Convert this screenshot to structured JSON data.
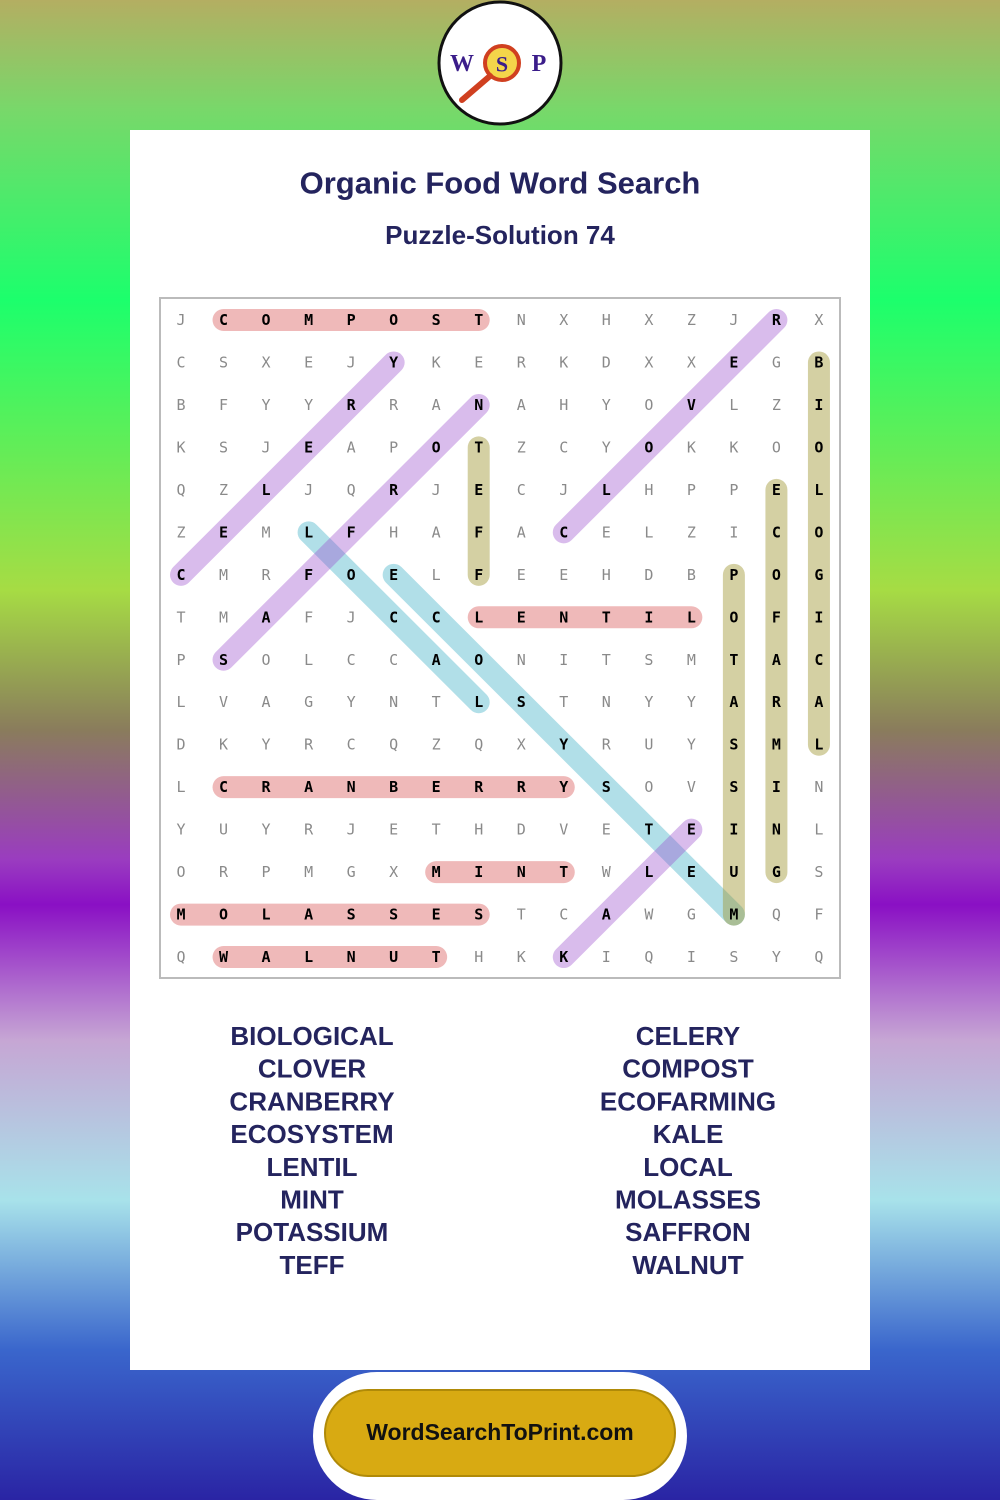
{
  "logo": {
    "letters": [
      "W",
      "S",
      "P"
    ]
  },
  "header": {
    "title": "Organic Food Word Search",
    "subtitle": "Puzzle-Solution 74"
  },
  "grid": {
    "rows": [
      [
        "J",
        "C",
        "O",
        "M",
        "P",
        "O",
        "S",
        "T",
        "N",
        "X",
        "H",
        "X",
        "Z",
        "J",
        "R",
        "X"
      ],
      [
        "C",
        "S",
        "X",
        "E",
        "J",
        "Y",
        "K",
        "E",
        "R",
        "K",
        "D",
        "X",
        "X",
        "E",
        "G",
        "B"
      ],
      [
        "B",
        "F",
        "Y",
        "Y",
        "R",
        "R",
        "A",
        "N",
        "A",
        "H",
        "Y",
        "O",
        "V",
        "L",
        "Z",
        "I"
      ],
      [
        "K",
        "S",
        "J",
        "E",
        "A",
        "P",
        "O",
        "T",
        "Z",
        "C",
        "Y",
        "O",
        "K",
        "K",
        "O",
        "O"
      ],
      [
        "Q",
        "Z",
        "L",
        "J",
        "Q",
        "R",
        "J",
        "E",
        "C",
        "J",
        "L",
        "H",
        "P",
        "P",
        "E",
        "L"
      ],
      [
        "Z",
        "E",
        "M",
        "L",
        "F",
        "H",
        "A",
        "F",
        "A",
        "C",
        "E",
        "L",
        "Z",
        "I",
        "C",
        "O"
      ],
      [
        "C",
        "M",
        "R",
        "F",
        "O",
        "E",
        "L",
        "F",
        "E",
        "E",
        "H",
        "D",
        "B",
        "P",
        "O",
        "G"
      ],
      [
        "T",
        "M",
        "A",
        "F",
        "J",
        "C",
        "C",
        "L",
        "E",
        "N",
        "T",
        "I",
        "L",
        "O",
        "F",
        "I"
      ],
      [
        "P",
        "S",
        "O",
        "L",
        "C",
        "C",
        "A",
        "O",
        "N",
        "I",
        "T",
        "S",
        "M",
        "T",
        "A",
        "C"
      ],
      [
        "L",
        "V",
        "A",
        "G",
        "Y",
        "N",
        "T",
        "L",
        "S",
        "T",
        "N",
        "Y",
        "Y",
        "A",
        "R",
        "A"
      ],
      [
        "D",
        "K",
        "Y",
        "R",
        "C",
        "Q",
        "Z",
        "Q",
        "X",
        "Y",
        "R",
        "U",
        "Y",
        "S",
        "M",
        "L"
      ],
      [
        "L",
        "C",
        "R",
        "A",
        "N",
        "B",
        "E",
        "R",
        "R",
        "Y",
        "S",
        "O",
        "V",
        "S",
        "I",
        "N"
      ],
      [
        "Y",
        "U",
        "Y",
        "R",
        "J",
        "E",
        "T",
        "H",
        "D",
        "V",
        "E",
        "T",
        "E",
        "I",
        "N",
        "L"
      ],
      [
        "O",
        "R",
        "P",
        "M",
        "G",
        "X",
        "M",
        "I",
        "N",
        "T",
        "W",
        "L",
        "E",
        "U",
        "G",
        "S"
      ],
      [
        "M",
        "O",
        "L",
        "A",
        "S",
        "S",
        "E",
        "S",
        "T",
        "C",
        "A",
        "W",
        "G",
        "M",
        "Q",
        "F"
      ],
      [
        "Q",
        "W",
        "A",
        "L",
        "N",
        "U",
        "T",
        "H",
        "K",
        "K",
        "I",
        "Q",
        "I",
        "S",
        "Y",
        "Q"
      ]
    ]
  },
  "word_list": {
    "left": [
      "BIOLOGICAL",
      "CLOVER",
      "CRANBERRY",
      "ECOSYSTEM",
      "LENTIL",
      "MINT",
      "POTASSIUM",
      "TEFF"
    ],
    "right": [
      "CELERY",
      "COMPOST",
      "ECOFARMING",
      "KALE",
      "LOCAL",
      "MOLASSES",
      "SAFFRON",
      "WALNUT"
    ]
  },
  "footer": {
    "site": "WordSearchToPrint.com"
  }
}
